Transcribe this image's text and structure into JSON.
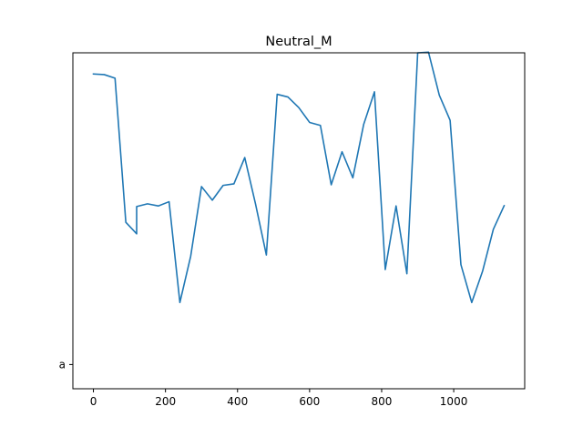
{
  "chart_data": {
    "type": "line",
    "title": "Neutral_M",
    "xlabel": "",
    "ylabel": "",
    "xlim": [
      -57,
      1197
    ],
    "ylim": [
      -0.08,
      1.03
    ],
    "x_ticks": [
      0,
      200,
      400,
      600,
      800,
      1000
    ],
    "y_ticks": [
      {
        "value": 0,
        "label": "a"
      }
    ],
    "grid": false,
    "legend": "none",
    "series": [
      {
        "color": "#1f77b4",
        "x": [
          0,
          30,
          60,
          90,
          120,
          120,
          150,
          180,
          210,
          240,
          270,
          300,
          330,
          360,
          390,
          420,
          450,
          480,
          510,
          540,
          570,
          600,
          630,
          660,
          690,
          720,
          750,
          780,
          810,
          840,
          870,
          900,
          930,
          960,
          990,
          1020,
          1050,
          1080,
          1110,
          1140
        ],
        "y": [
          0.96,
          0.958,
          0.946,
          0.47,
          0.432,
          0.522,
          0.531,
          0.524,
          0.538,
          0.205,
          0.358,
          0.588,
          0.543,
          0.592,
          0.597,
          0.684,
          0.53,
          0.362,
          0.893,
          0.884,
          0.849,
          0.8,
          0.79,
          0.594,
          0.703,
          0.617,
          0.793,
          0.901,
          0.314,
          0.524,
          0.3,
          1.03,
          1.032,
          0.89,
          0.807,
          0.33,
          0.205,
          0.308,
          0.447,
          0.525
        ]
      }
    ]
  }
}
